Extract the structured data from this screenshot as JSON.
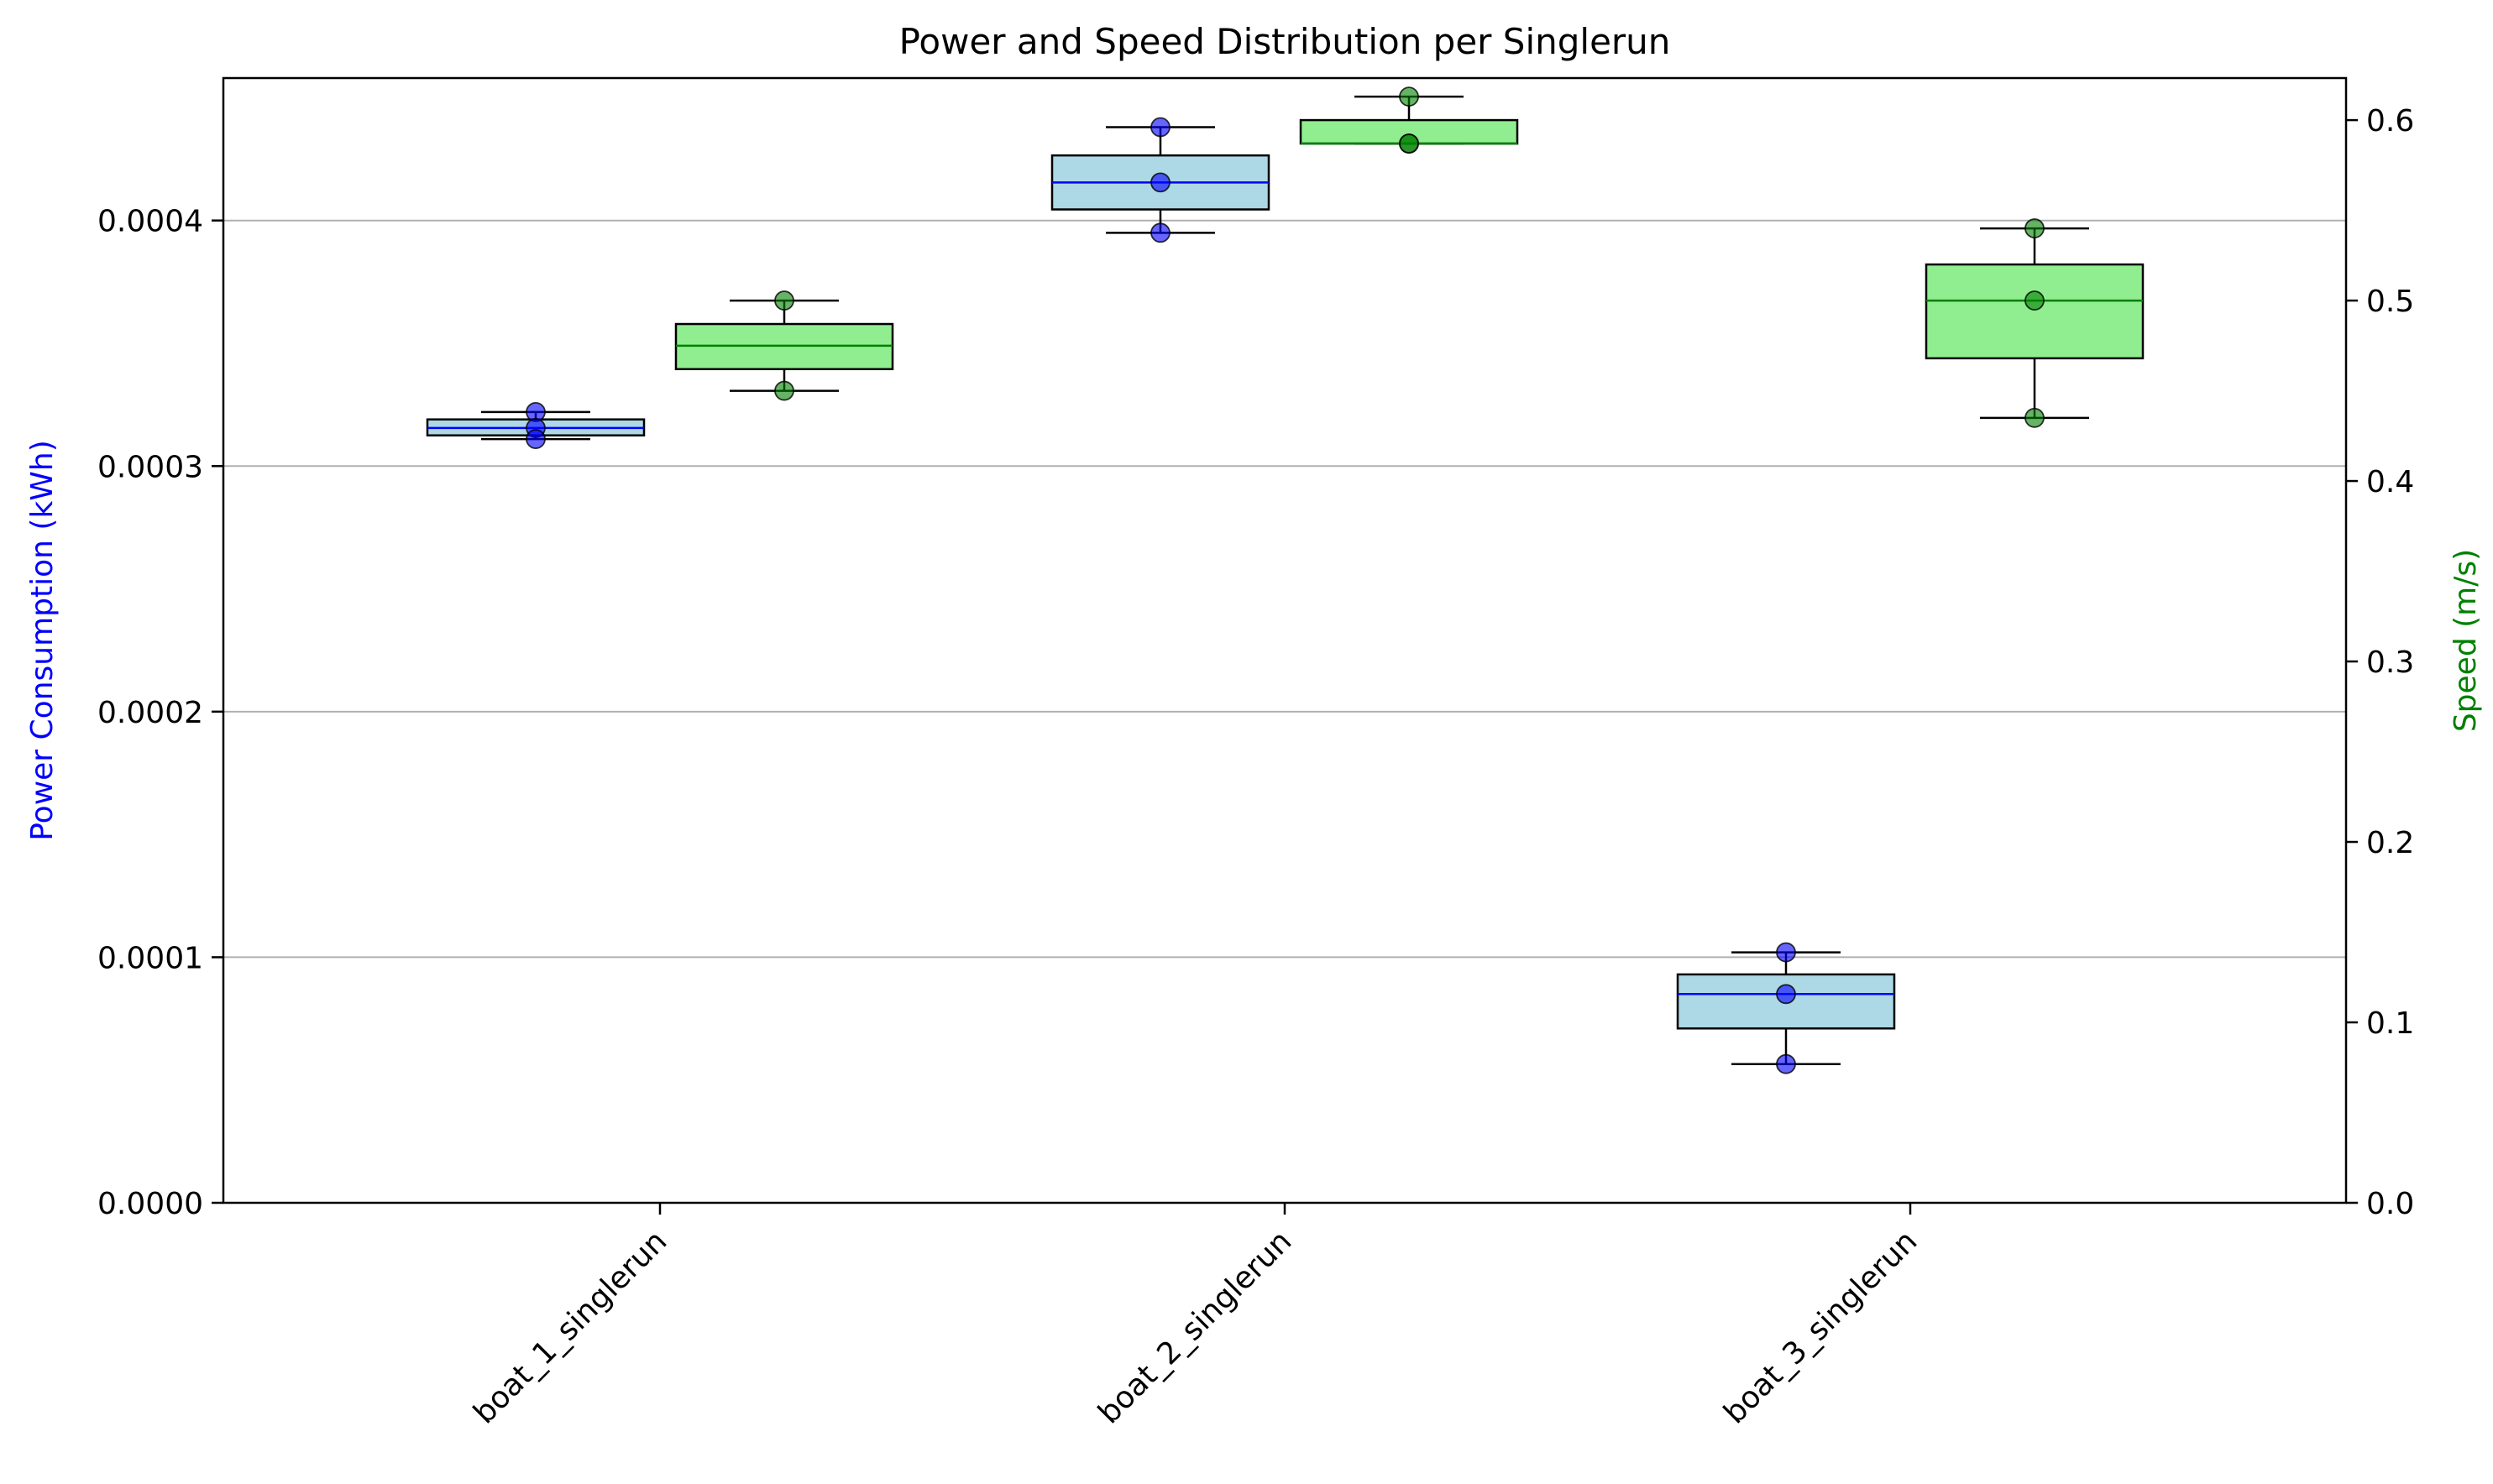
{
  "chart_data": {
    "type": "boxplot",
    "title": "Power and Speed Distribution per Singlerun",
    "categories": [
      "boat_1_singlerun",
      "boat_2_singlerun",
      "boat_3_singlerun"
    ],
    "left_axis": {
      "label": "Power Consumption (kWh)",
      "label_color": "#0000ff",
      "ylim": [
        0,
        0.000458
      ],
      "ticks": [
        "0.0000",
        "0.0001",
        "0.0002",
        "0.0003",
        "0.0004"
      ],
      "tick_values": [
        0,
        0.0001,
        0.0002,
        0.0003,
        0.0004
      ]
    },
    "right_axis": {
      "label": "Speed (m/s)",
      "label_color": "#008000",
      "ylim": [
        0,
        0.6233
      ],
      "ticks": [
        "0.0",
        "0.1",
        "0.2",
        "0.3",
        "0.4",
        "0.5",
        "0.6"
      ],
      "tick_values": [
        0,
        0.1,
        0.2,
        0.3,
        0.4,
        0.5,
        0.6
      ]
    },
    "grid": "horizontal (left axis)",
    "series": [
      {
        "name": "Power Consumption (kWh)",
        "axis": "left",
        "box_color": "#add8e6",
        "median_color": "#0000ff",
        "point_color": "#0000ff",
        "boxes": [
          {
            "min": 0.000311,
            "q1": 0.0003125,
            "median": 0.0003155,
            "q3": 0.000319,
            "max": 0.000322,
            "points": [
              0.000322,
              0.0003155,
              0.000311
            ]
          },
          {
            "min": 0.000395,
            "q1": 0.0004045,
            "median": 0.0004155,
            "q3": 0.0004265,
            "max": 0.000438,
            "points": [
              0.000438,
              0.0004155,
              0.000395
            ]
          },
          {
            "min": 5.65e-05,
            "q1": 7.1e-05,
            "median": 8.5e-05,
            "q3": 9.3e-05,
            "max": 0.000102,
            "points": [
              0.000102,
              8.5e-05,
              5.65e-05
            ]
          }
        ]
      },
      {
        "name": "Speed (m/s)",
        "axis": "right",
        "box_color": "#90ee90",
        "median_color": "#008000",
        "point_color": "#008000",
        "boxes": [
          {
            "min": 0.45,
            "q1": 0.462,
            "median": 0.475,
            "q3": 0.487,
            "max": 0.5,
            "points": [
              0.5,
              0.45
            ]
          },
          {
            "min": 0.587,
            "q1": 0.587,
            "median": 0.587,
            "q3": 0.6,
            "max": 0.613,
            "points": [
              0.613,
              0.587,
              0.587
            ]
          },
          {
            "min": 0.435,
            "q1": 0.468,
            "median": 0.5,
            "q3": 0.52,
            "max": 0.54,
            "points": [
              0.54,
              0.5,
              0.435
            ]
          }
        ]
      }
    ]
  }
}
